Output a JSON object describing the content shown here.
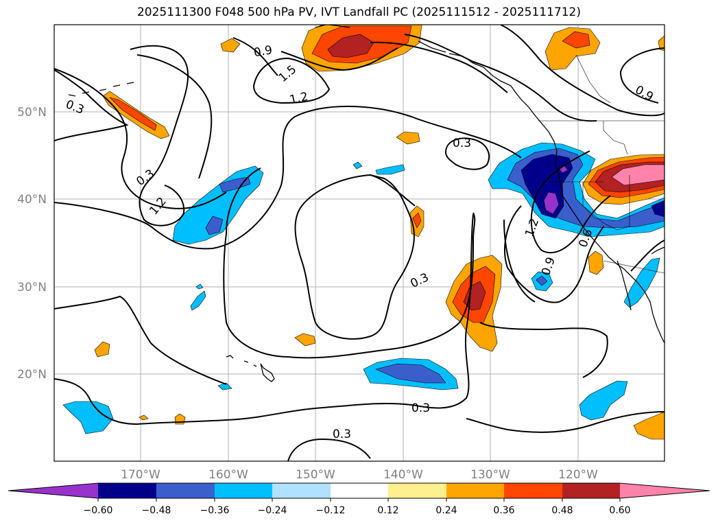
{
  "title": "2025111300 F048 500 hPa PV, IVT Landfall PC (2025111512 - 2025111712)",
  "map": {
    "lon_ticks": [
      "170°W",
      "160°W",
      "150°W",
      "140°W",
      "130°W",
      "120°W"
    ],
    "lat_ticks": [
      "50°N",
      "40°N",
      "30°N",
      "20°N"
    ],
    "contour_labels": [
      "0.3",
      "0.3",
      "0.3",
      "0.3",
      "0.3",
      "0.3",
      "0.9",
      "0.9",
      "0.9",
      "1.2",
      "1.2",
      "1.2",
      "1.5",
      "0.6"
    ]
  },
  "colorbar": {
    "ticks": [
      "−0.60",
      "−0.48",
      "−0.36",
      "−0.24",
      "−0.12",
      "0.12",
      "0.24",
      "0.36",
      "0.48",
      "0.60"
    ],
    "colors": [
      "#9932cc",
      "#00008b",
      "#3a5fcd",
      "#00bfff",
      "#b0e2ff",
      "#ffffff",
      "#fff08f",
      "#ffa500",
      "#ff4500",
      "#b22222",
      "#ff82ab"
    ]
  }
}
